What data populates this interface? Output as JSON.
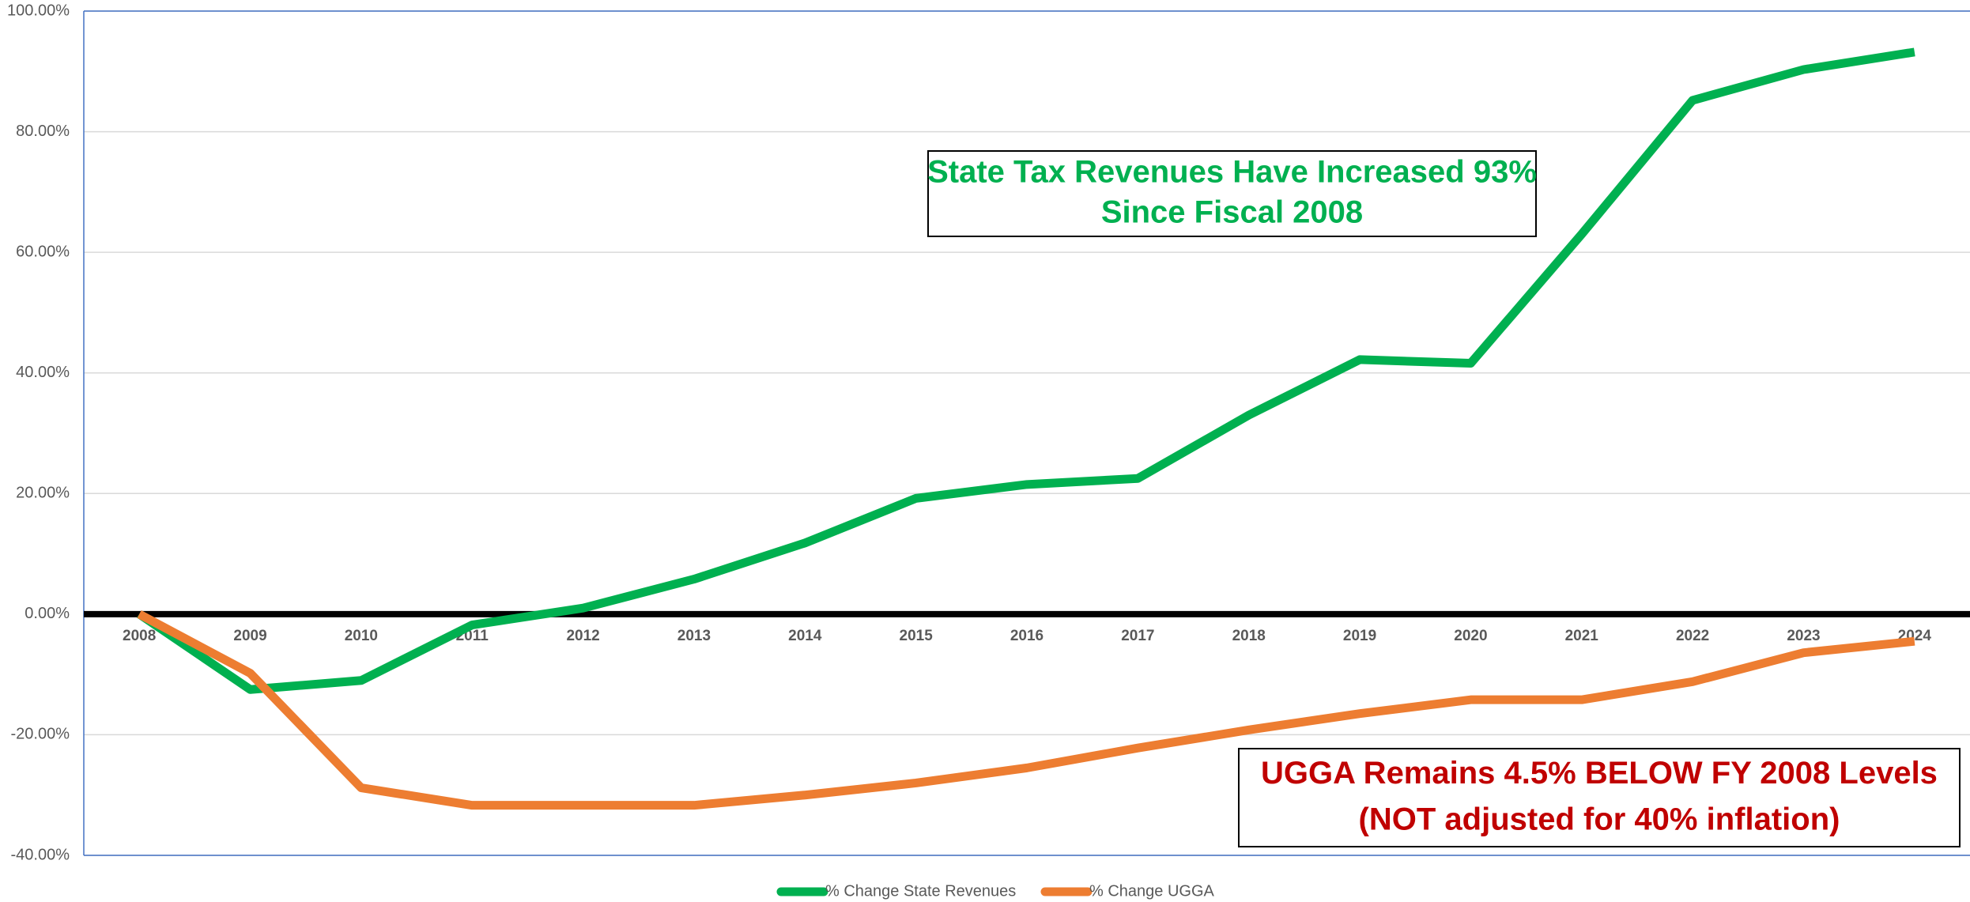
{
  "chart_data": {
    "type": "line",
    "categories": [
      "2008",
      "2009",
      "2010",
      "2011",
      "2012",
      "2013",
      "2014",
      "2015",
      "2016",
      "2017",
      "2018",
      "2019",
      "2020",
      "2021",
      "2022",
      "2023",
      "2024"
    ],
    "series": [
      {
        "name": "% Change State Revenues",
        "color": "#00b050",
        "values": [
          0,
          -12.5,
          -11,
          -1.8,
          1,
          5.8,
          11.8,
          19.2,
          21.5,
          22.5,
          33,
          42.2,
          41.6,
          63,
          85.2,
          90.3,
          93.2
        ]
      },
      {
        "name": "% Change UGGA",
        "color": "#ed7d31",
        "values": [
          0,
          -9.8,
          -28.8,
          -31.7,
          -31.7,
          -31.7,
          -30,
          -28,
          -25.5,
          -22.2,
          -19.2,
          -16.5,
          -14.2,
          -14.2,
          -11.2,
          -6.4,
          -4.5
        ]
      }
    ],
    "ylim": [
      -40,
      100
    ],
    "yticks": [
      {
        "value": -40,
        "label": "-40.00%"
      },
      {
        "value": -20,
        "label": "-20.00%"
      },
      {
        "value": 0,
        "label": "0.00%"
      },
      {
        "value": 20,
        "label": "20.00%"
      },
      {
        "value": 40,
        "label": "40.00%"
      },
      {
        "value": 60,
        "label": "60.00%"
      },
      {
        "value": 80,
        "label": "80.00%"
      },
      {
        "value": 100,
        "label": "100.00%"
      }
    ],
    "grid": true,
    "legend": "bottom",
    "annotations": [
      {
        "lines": [
          "State Tax Revenues Have Increased 93%",
          "Since Fiscal 2008"
        ],
        "color": "#00b050"
      },
      {
        "lines": [
          "UGGA Remains 4.5% BELOW FY 2008 Levels",
          "(NOT adjusted for 40% inflation)"
        ],
        "color": "#c00000"
      }
    ]
  }
}
